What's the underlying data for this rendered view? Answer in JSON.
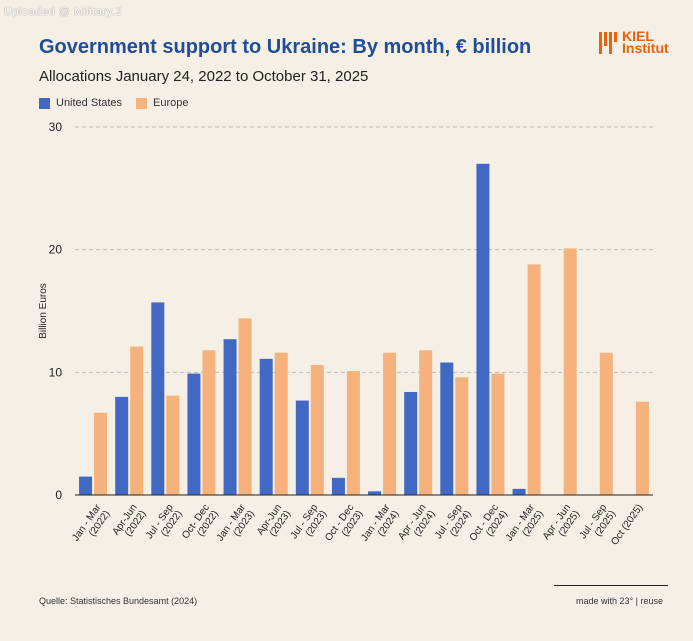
{
  "watermark": "Uploaded @ Military.2",
  "title": "Government support to Ukraine: By month, € billion",
  "subtitle": "Allocations January 24, 2022 to October 31, 2025",
  "logo": {
    "line1": "KIEL",
    "line2": "Institut"
  },
  "source": "Quelle: Statistisches Bundesamt (2024)",
  "made_with": "made with 23° | reuse",
  "colors": {
    "us": "#4169c4",
    "europe": "#f6b27c",
    "title": "#1f4e9a",
    "logo": "#e8620f"
  },
  "chart_data": {
    "type": "bar",
    "title": "Government support to Ukraine: By month, € billion",
    "ylabel": "Billion Euros",
    "xlabel": "",
    "ylim": [
      0,
      30
    ],
    "yticks": [
      0,
      10,
      20,
      30
    ],
    "grid": true,
    "legend_position": "top-left",
    "categories": [
      [
        "Jan - Mar",
        "(2022)"
      ],
      [
        "Apr-Jun",
        "(2022)"
      ],
      [
        "Jul - Sep",
        "(2022)"
      ],
      [
        "Oct- Dec",
        "(2022)"
      ],
      [
        "Jan - Mar",
        "(2023)"
      ],
      [
        "Apr-Jun",
        "(2023)"
      ],
      [
        "Jul - Sep",
        "(2023)"
      ],
      [
        "Oct - Dec",
        "(2023)"
      ],
      [
        "Jan - Mar",
        "(2024)"
      ],
      [
        "Apr - Jun",
        "(2024)"
      ],
      [
        "Jul - Sep",
        "(2024)"
      ],
      [
        "Oct - Dec",
        "(2024)"
      ],
      [
        "Jan - Mar",
        "(2025)"
      ],
      [
        "Apr - Jun",
        "(2025)"
      ],
      [
        "Jul - Sep",
        "(2025)"
      ],
      [
        "Oct (2025)"
      ]
    ],
    "series": [
      {
        "name": "United States",
        "color": "#4169c4",
        "values": [
          1.5,
          8.0,
          15.7,
          9.9,
          12.7,
          11.1,
          7.7,
          1.4,
          0.3,
          8.4,
          10.8,
          27.0,
          0.5,
          0,
          0,
          0
        ]
      },
      {
        "name": "Europe",
        "color": "#f6b27c",
        "values": [
          6.7,
          12.1,
          8.1,
          11.8,
          14.4,
          11.6,
          10.6,
          10.1,
          11.6,
          11.8,
          9.6,
          9.9,
          18.8,
          20.1,
          11.6,
          7.6
        ]
      }
    ]
  }
}
